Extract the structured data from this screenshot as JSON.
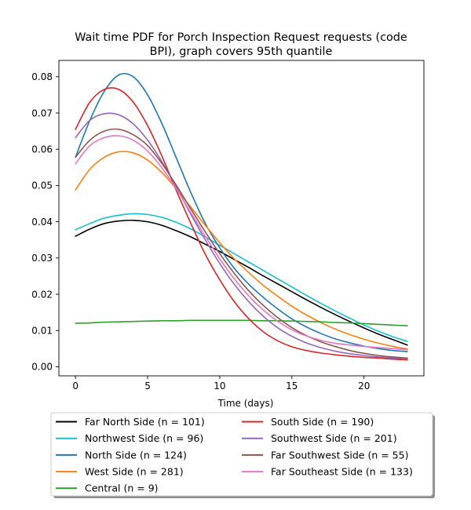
{
  "chart_data": {
    "type": "line",
    "title_line1": "Wait time PDF for Porch Inspection Request  requests (code",
    "title_line2": "BPI), graph covers 95th quantile",
    "xlabel": "Time (days)",
    "ylabel": "",
    "xlim": [
      -1.15,
      24.15
    ],
    "ylim": [
      -0.0025,
      0.0845
    ],
    "x_ticks": [
      0,
      5,
      10,
      15,
      20
    ],
    "y_ticks": [
      0.0,
      0.01,
      0.02,
      0.03,
      0.04,
      0.05,
      0.06,
      0.07,
      0.08
    ],
    "y_tick_labels": [
      "0.00",
      "0.01",
      "0.02",
      "0.03",
      "0.04",
      "0.05",
      "0.06",
      "0.07",
      "0.08"
    ],
    "grid": false,
    "legend_position": "below-center",
    "x": [
      0,
      1,
      2,
      3,
      4,
      5,
      6,
      7,
      8,
      9,
      10,
      11,
      12,
      13,
      14,
      15,
      16,
      17,
      18,
      19,
      20,
      21,
      22,
      23
    ],
    "series": [
      {
        "name": "Far North Side (n = 101)",
        "color": "#000000",
        "values": [
          0.036,
          0.038,
          0.0395,
          0.0402,
          0.0404,
          0.04,
          0.039,
          0.0375,
          0.0358,
          0.0338,
          0.0318,
          0.0296,
          0.0274,
          0.0251,
          0.0229,
          0.0207,
          0.0185,
          0.0164,
          0.0144,
          0.0125,
          0.0107,
          0.009,
          0.0075,
          0.006
        ]
      },
      {
        "name": "Northwest Side (n = 96)",
        "color": "#17becf",
        "values": [
          0.0378,
          0.0395,
          0.041,
          0.0418,
          0.0422,
          0.042,
          0.0412,
          0.0398,
          0.038,
          0.0358,
          0.0335,
          0.0312,
          0.0289,
          0.0266,
          0.0243,
          0.022,
          0.0197,
          0.0175,
          0.0154,
          0.0134,
          0.0115,
          0.0098,
          0.0083,
          0.007
        ]
      },
      {
        "name": "North Side (n = 124)",
        "color": "#1f77b4",
        "values": [
          0.0578,
          0.068,
          0.076,
          0.0805,
          0.08,
          0.075,
          0.067,
          0.0575,
          0.048,
          0.0395,
          0.0328,
          0.0272,
          0.0228,
          0.0192,
          0.016,
          0.0132,
          0.011,
          0.0092,
          0.0077,
          0.0066,
          0.0057,
          0.005,
          0.0045,
          0.0042
        ]
      },
      {
        "name": "West Side (n = 281)",
        "color": "#ff7f0e",
        "values": [
          0.0488,
          0.0545,
          0.0578,
          0.0593,
          0.059,
          0.057,
          0.0535,
          0.049,
          0.044,
          0.039,
          0.0342,
          0.0298,
          0.026,
          0.0225,
          0.0195,
          0.0167,
          0.0143,
          0.0122,
          0.0104,
          0.0089,
          0.0076,
          0.0065,
          0.0056,
          0.0049
        ]
      },
      {
        "name": "Central (n = 9)",
        "color": "#2ca02c",
        "values": [
          0.012,
          0.0121,
          0.0123,
          0.0124,
          0.0125,
          0.0126,
          0.0127,
          0.0127,
          0.0128,
          0.0128,
          0.0128,
          0.0128,
          0.0128,
          0.0127,
          0.0127,
          0.0126,
          0.0125,
          0.0124,
          0.0122,
          0.0121,
          0.0119,
          0.0117,
          0.0115,
          0.0113
        ]
      },
      {
        "name": "South Side (n = 190)",
        "color": "#d62728",
        "values": [
          0.0655,
          0.073,
          0.0765,
          0.0765,
          0.073,
          0.0665,
          0.058,
          0.0485,
          0.0395,
          0.031,
          0.024,
          0.018,
          0.0133,
          0.0097,
          0.0072,
          0.0055,
          0.0045,
          0.0038,
          0.0033,
          0.0029,
          0.0026,
          0.0024,
          0.0021,
          0.0019
        ]
      },
      {
        "name": "Southwest Side (n = 201)",
        "color": "#9467bd",
        "values": [
          0.0632,
          0.068,
          0.0698,
          0.0695,
          0.067,
          0.0625,
          0.0565,
          0.0495,
          0.042,
          0.035,
          0.0285,
          0.0228,
          0.018,
          0.014,
          0.0108,
          0.0084,
          0.0066,
          0.0053,
          0.0043,
          0.0036,
          0.0031,
          0.0027,
          0.0024,
          0.0022
        ]
      },
      {
        "name": "Far Southwest Side (n = 55)",
        "color": "#8c564b",
        "values": [
          0.0578,
          0.0625,
          0.065,
          0.0655,
          0.064,
          0.061,
          0.056,
          0.05,
          0.0435,
          0.0372,
          0.0312,
          0.0258,
          0.021,
          0.017,
          0.0136,
          0.0108,
          0.0086,
          0.0069,
          0.0056,
          0.0045,
          0.0037,
          0.0031,
          0.0027,
          0.0024
        ]
      },
      {
        "name": "Far Southeast Side (n = 133)",
        "color": "#e377c2",
        "values": [
          0.056,
          0.061,
          0.0632,
          0.0637,
          0.0625,
          0.0595,
          0.0548,
          0.049,
          0.0425,
          0.036,
          0.0298,
          0.0243,
          0.0196,
          0.0157,
          0.0126,
          0.0102,
          0.0085,
          0.0073,
          0.0065,
          0.006,
          0.0056,
          0.0053,
          0.005,
          0.0047
        ]
      }
    ]
  }
}
